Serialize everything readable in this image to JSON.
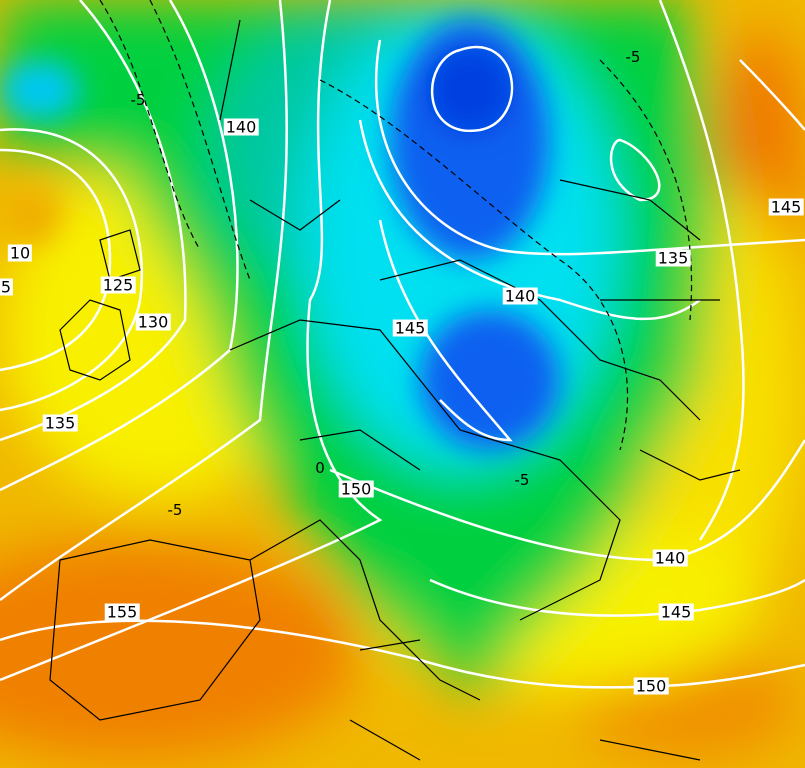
{
  "map": {
    "colors": {
      "orange": "#f07800",
      "light_orange": "#f0a800",
      "yellow": "#f8f000",
      "green": "#00d040",
      "teal": "#00c890",
      "cyan": "#00e0f0",
      "blue": "#0060f0",
      "contour": "#ffffff",
      "border": "#000000"
    },
    "contour_labels": [
      {
        "text": "140"
      },
      {
        "text": "10"
      },
      {
        "text": "5"
      },
      {
        "text": "125"
      },
      {
        "text": "130"
      },
      {
        "text": "135"
      },
      {
        "text": "145"
      },
      {
        "text": "140"
      },
      {
        "text": "135"
      },
      {
        "text": "145"
      },
      {
        "text": "150"
      },
      {
        "text": "140"
      },
      {
        "text": "145"
      },
      {
        "text": "155"
      },
      {
        "text": "150"
      }
    ],
    "temperature_labels": [
      {
        "text": "-5"
      },
      {
        "text": "-5"
      },
      {
        "text": "-5"
      },
      {
        "text": "0"
      },
      {
        "text": "-5"
      }
    ]
  }
}
